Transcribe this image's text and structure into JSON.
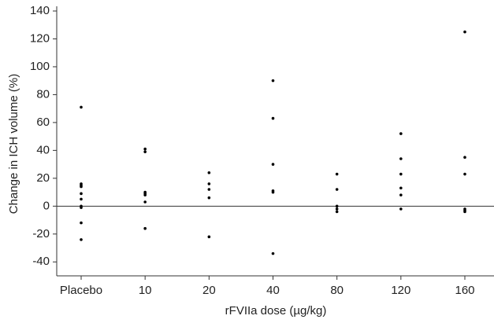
{
  "chart_data": {
    "type": "strip",
    "x_label": "rFVIIa dose (µg/kg)",
    "y_label": "Change in ICH volume (%)",
    "categories": [
      "Placebo",
      "10",
      "20",
      "40",
      "80",
      "120",
      "160"
    ],
    "values": [
      [
        71,
        16,
        15,
        14,
        9,
        5,
        0,
        -1,
        -12,
        -24
      ],
      [
        41,
        39,
        10,
        9,
        8,
        3,
        -16
      ],
      [
        24,
        16,
        12,
        6,
        -22
      ],
      [
        90,
        63,
        30,
        11,
        10,
        -34
      ],
      [
        23,
        12,
        0,
        -2,
        -4
      ],
      [
        52,
        34,
        23,
        13,
        8,
        -2
      ],
      [
        125,
        35,
        23,
        -2,
        -3,
        -4
      ]
    ],
    "color": "#000000",
    "reference_line": 0,
    "ylim": [
      -50,
      140
    ],
    "yticks": [
      -40,
      -20,
      0,
      20,
      40,
      60,
      80,
      100,
      120,
      140
    ]
  }
}
